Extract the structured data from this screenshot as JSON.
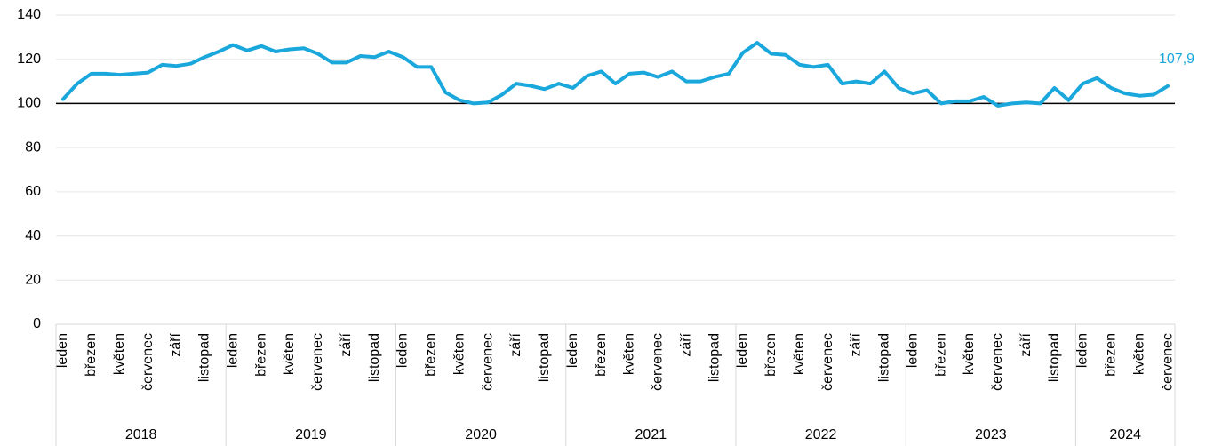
{
  "chart_data": {
    "type": "line",
    "categories": [
      "leden",
      null,
      "březen",
      null,
      "květen",
      null,
      "červenec",
      null,
      "září",
      null,
      "listopad",
      null,
      "leden",
      null,
      "březen",
      null,
      "květen",
      null,
      "červenec",
      null,
      "září",
      null,
      "listopad",
      null,
      "leden",
      null,
      "březen",
      null,
      "květen",
      null,
      "červenec",
      null,
      "září",
      null,
      "listopad",
      null,
      "leden",
      null,
      "březen",
      null,
      "květen",
      null,
      "červenec",
      null,
      "září",
      null,
      "listopad",
      null,
      "leden",
      null,
      "březen",
      null,
      "květen",
      null,
      "červenec",
      null,
      "září",
      null,
      "listopad",
      null,
      "leden",
      null,
      "březen",
      null,
      "květen",
      null,
      "červenec",
      null,
      "září",
      null,
      "listopad",
      null,
      "leden",
      null,
      "březen",
      null,
      "květen",
      null,
      "červenec"
    ],
    "groups": [
      {
        "label": "2018",
        "span": 12
      },
      {
        "label": "2019",
        "span": 12
      },
      {
        "label": "2020",
        "span": 12
      },
      {
        "label": "2021",
        "span": 12
      },
      {
        "label": "2022",
        "span": 12
      },
      {
        "label": "2023",
        "span": 12
      },
      {
        "label": "2024",
        "span": 7
      }
    ],
    "series": [
      {
        "color": "#1aa7dc",
        "values": [
          102,
          109,
          113.5,
          113.5,
          113,
          113.5,
          114,
          117.5,
          117,
          118,
          121,
          123.5,
          126.5,
          124,
          126,
          123.5,
          124.5,
          125,
          122.5,
          118.5,
          118.5,
          121.5,
          121,
          123.5,
          121,
          116.5,
          116.5,
          105,
          101.5,
          100,
          100.5,
          104,
          109,
          108,
          106.5,
          109,
          107,
          112.5,
          114.5,
          109,
          113.5,
          114,
          112,
          114.5,
          110,
          110,
          112,
          113.5,
          123,
          127.5,
          122.5,
          122,
          117.5,
          116.5,
          117.5,
          109,
          110,
          109,
          114.5,
          107,
          104.5,
          106,
          100,
          101,
          101,
          103,
          99,
          100,
          100.5,
          100,
          107,
          101.5,
          109,
          111.5,
          107,
          104.5,
          103.5,
          104,
          107.9
        ],
        "value_labels": [
          null,
          null,
          null,
          null,
          null,
          null,
          null,
          null,
          null,
          null,
          null,
          null,
          null,
          null,
          null,
          null,
          null,
          null,
          null,
          null,
          null,
          null,
          null,
          null,
          null,
          null,
          null,
          null,
          null,
          null,
          null,
          null,
          null,
          null,
          null,
          null,
          null,
          null,
          null,
          null,
          null,
          null,
          null,
          null,
          null,
          null,
          null,
          null,
          null,
          null,
          null,
          null,
          null,
          null,
          null,
          null,
          null,
          null,
          null,
          null,
          null,
          null,
          null,
          null,
          null,
          null,
          null,
          null,
          null,
          null,
          null,
          null,
          null,
          null,
          null,
          null,
          null,
          null,
          "107,9"
        ]
      }
    ],
    "ylim": [
      0,
      140
    ],
    "yticks": [
      0,
      20,
      40,
      60,
      80,
      100,
      120,
      140
    ],
    "grid": true,
    "reference_line": 100
  }
}
